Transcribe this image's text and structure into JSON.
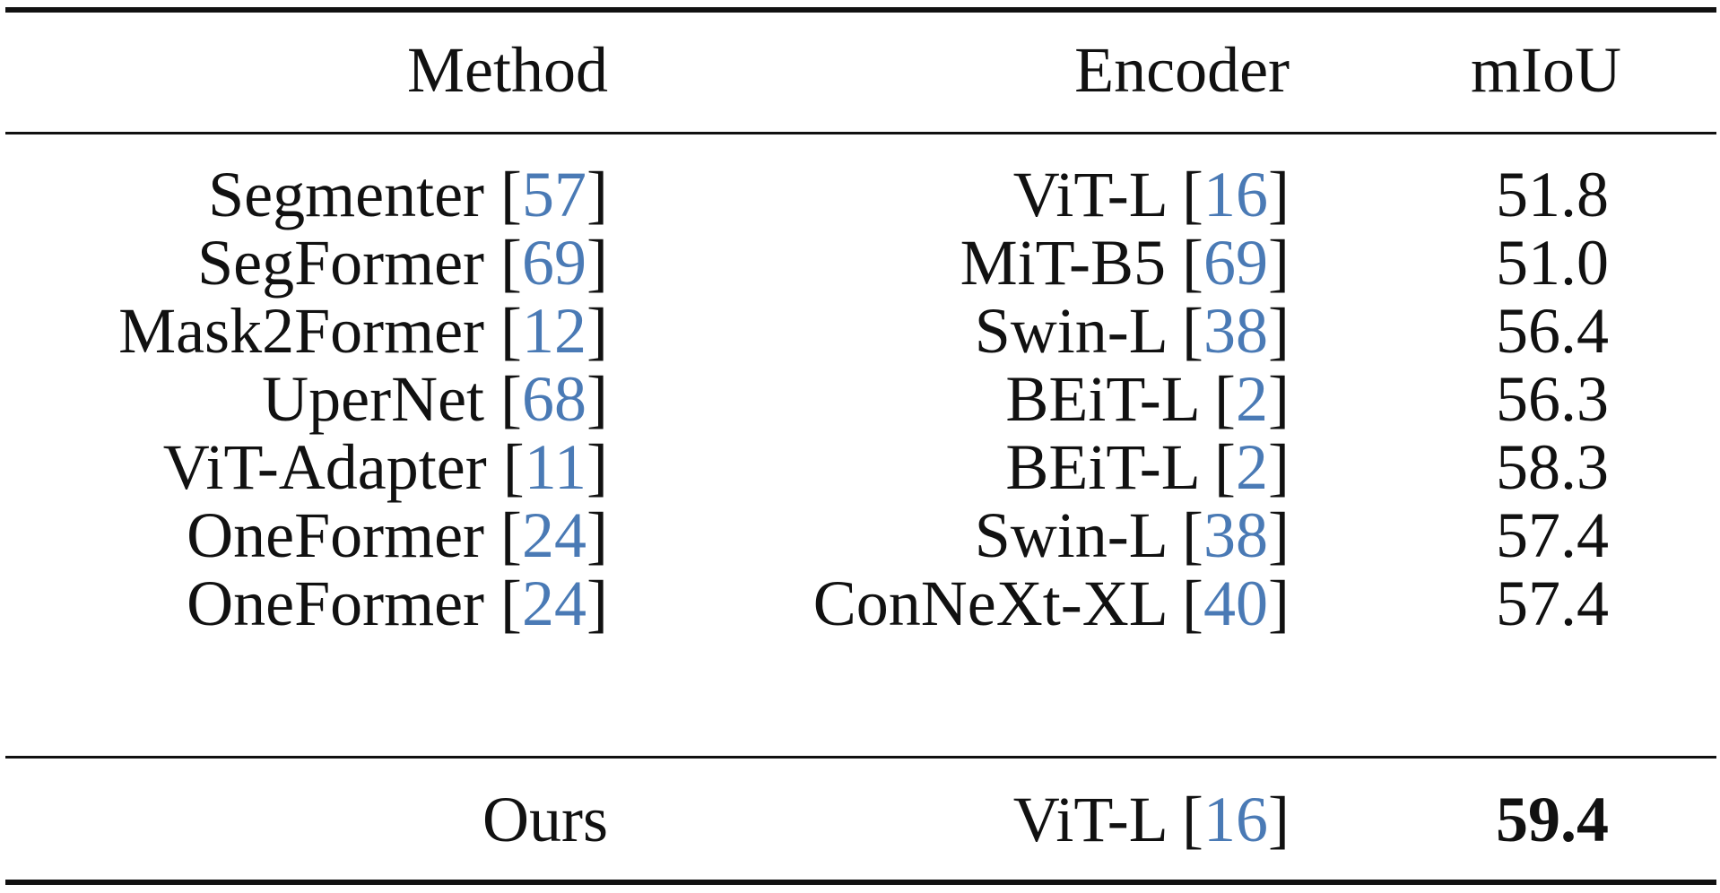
{
  "table": {
    "headers": {
      "method": "Method",
      "encoder": "Encoder",
      "miou": "mIoU"
    },
    "rows": [
      {
        "method": "Segmenter",
        "method_ref": "57",
        "encoder": "ViT-L",
        "encoder_ref": "16",
        "miou": "51.8"
      },
      {
        "method": "SegFormer",
        "method_ref": "69",
        "encoder": "MiT-B5",
        "encoder_ref": "69",
        "miou": "51.0"
      },
      {
        "method": "Mask2Former",
        "method_ref": "12",
        "encoder": "Swin-L",
        "encoder_ref": "38",
        "miou": "56.4"
      },
      {
        "method": "UperNet",
        "method_ref": "68",
        "encoder": "BEiT-L",
        "encoder_ref": "2",
        "miou": "56.3"
      },
      {
        "method": "ViT-Adapter",
        "method_ref": "11",
        "encoder": "BEiT-L",
        "encoder_ref": "2",
        "miou": "58.3"
      },
      {
        "method": "OneFormer",
        "method_ref": "24",
        "encoder": "Swin-L",
        "encoder_ref": "38",
        "miou": "57.4"
      },
      {
        "method": "OneFormer",
        "method_ref": "24",
        "encoder": "ConNeXt-XL",
        "encoder_ref": "40",
        "miou": "57.4"
      }
    ],
    "ours": {
      "method": "Ours",
      "encoder": "ViT-L",
      "encoder_ref": "16",
      "miou": "59.4"
    }
  },
  "colors": {
    "text": "#111111",
    "citation_link": "#4a7ab5"
  }
}
